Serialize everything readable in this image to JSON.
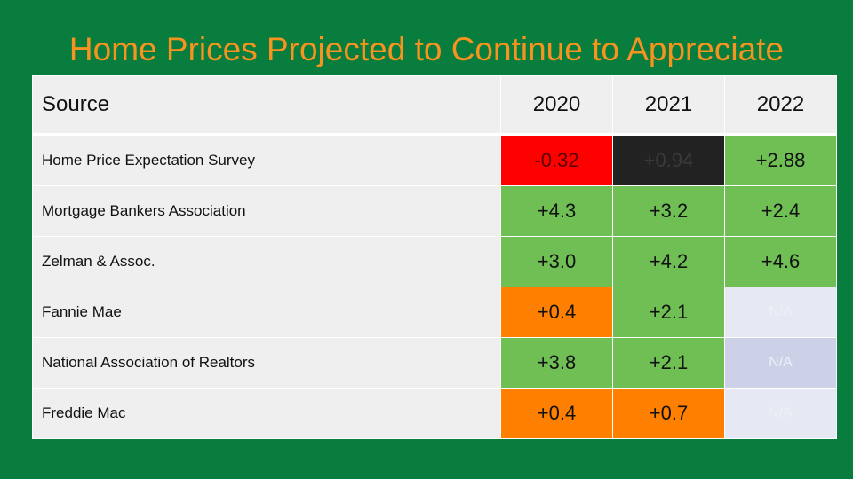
{
  "title": "Home Prices Projected to Continue to Appreciate",
  "colors": {
    "background": "#087d3e",
    "title": "#f7931e",
    "header_bg": "#efefef",
    "source_bg": "#efefef",
    "red": "#ff0000",
    "black": "#222222",
    "green": "#70bf55",
    "orange": "#ff8000",
    "na_light": "#e6e8f3",
    "na_blue": "#ccd1e7"
  },
  "table": {
    "headers": [
      "Source",
      "2020",
      "2021",
      "2022"
    ],
    "rows": [
      {
        "source": "Home Price Expectation Survey",
        "cells": [
          {
            "text": "-0.32",
            "bg": "#ff0000",
            "fg": "#5c0000"
          },
          {
            "text": "+0.94",
            "bg": "#222222",
            "fg": "#3a3a3a"
          },
          {
            "text": "+2.88",
            "bg": "#70bf55",
            "fg": "#111111"
          }
        ]
      },
      {
        "source": "Mortgage Bankers Association",
        "cells": [
          {
            "text": "+4.3",
            "bg": "#70bf55",
            "fg": "#111111"
          },
          {
            "text": "+3.2",
            "bg": "#70bf55",
            "fg": "#111111"
          },
          {
            "text": "+2.4",
            "bg": "#70bf55",
            "fg": "#111111"
          }
        ]
      },
      {
        "source": "Zelman & Assoc.",
        "cells": [
          {
            "text": "+3.0",
            "bg": "#70bf55",
            "fg": "#111111"
          },
          {
            "text": "+4.2",
            "bg": "#70bf55",
            "fg": "#111111"
          },
          {
            "text": "+4.6",
            "bg": "#70bf55",
            "fg": "#111111"
          }
        ]
      },
      {
        "source": "Fannie Mae",
        "cells": [
          {
            "text": "+0.4",
            "bg": "#ff8000",
            "fg": "#111111"
          },
          {
            "text": "+2.1",
            "bg": "#70bf55",
            "fg": "#111111"
          },
          {
            "text": "N/A",
            "bg": "#e6e8f3",
            "fg": "#eef0f7",
            "na": true
          }
        ]
      },
      {
        "source": "National Association of Realtors",
        "cells": [
          {
            "text": "+3.8",
            "bg": "#70bf55",
            "fg": "#111111"
          },
          {
            "text": "+2.1",
            "bg": "#70bf55",
            "fg": "#111111"
          },
          {
            "text": "N/A",
            "bg": "#ccd1e7",
            "fg": "#eef0f7",
            "na": true
          }
        ]
      },
      {
        "source": "Freddie Mac",
        "cells": [
          {
            "text": "+0.4",
            "bg": "#ff8000",
            "fg": "#111111"
          },
          {
            "text": "+0.7",
            "bg": "#ff8000",
            "fg": "#111111"
          },
          {
            "text": "N/A",
            "bg": "#e6e8f3",
            "fg": "#eef0f7",
            "na": true
          }
        ]
      }
    ]
  }
}
